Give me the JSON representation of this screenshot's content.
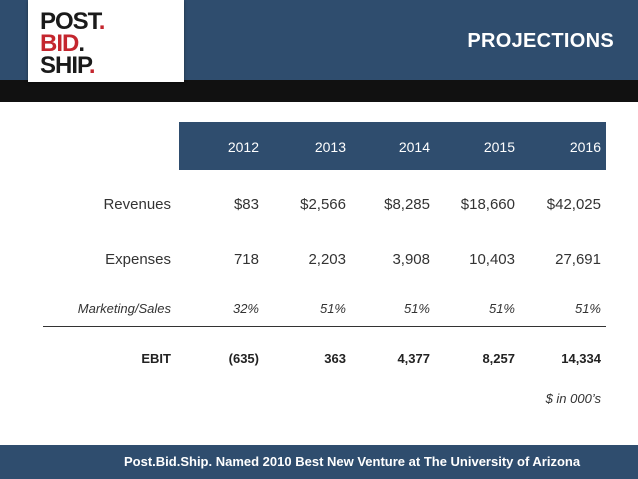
{
  "logo": {
    "line1": "POST",
    "line2": "BID",
    "line3": "SHIP",
    "dot": "."
  },
  "title": "PROJECTIONS",
  "table": {
    "years": [
      "2012",
      "2013",
      "2014",
      "2015",
      "2016"
    ],
    "rows": [
      {
        "label": "Revenues",
        "values": [
          "$83",
          "$2,566",
          "$8,285",
          "$18,660",
          "$42,025"
        ]
      },
      {
        "label": "Expenses",
        "values": [
          "718",
          "2,203",
          "3,908",
          "10,403",
          "27,691"
        ]
      },
      {
        "label": "Marketing/Sales",
        "values": [
          "32%",
          "51%",
          "51%",
          "51%",
          "51%"
        ]
      },
      {
        "label": "EBIT",
        "values": [
          "(635)",
          "363",
          "4,377",
          "8,257",
          "14,334"
        ]
      }
    ],
    "note": "$ in 000’s"
  },
  "footer": "Post.Bid.Ship. Named 2010 Best New Venture at The University of Arizona",
  "colors": {
    "navy": "#2f4d6e",
    "black_bar": "#111111",
    "logo_red": "#c4262e"
  }
}
